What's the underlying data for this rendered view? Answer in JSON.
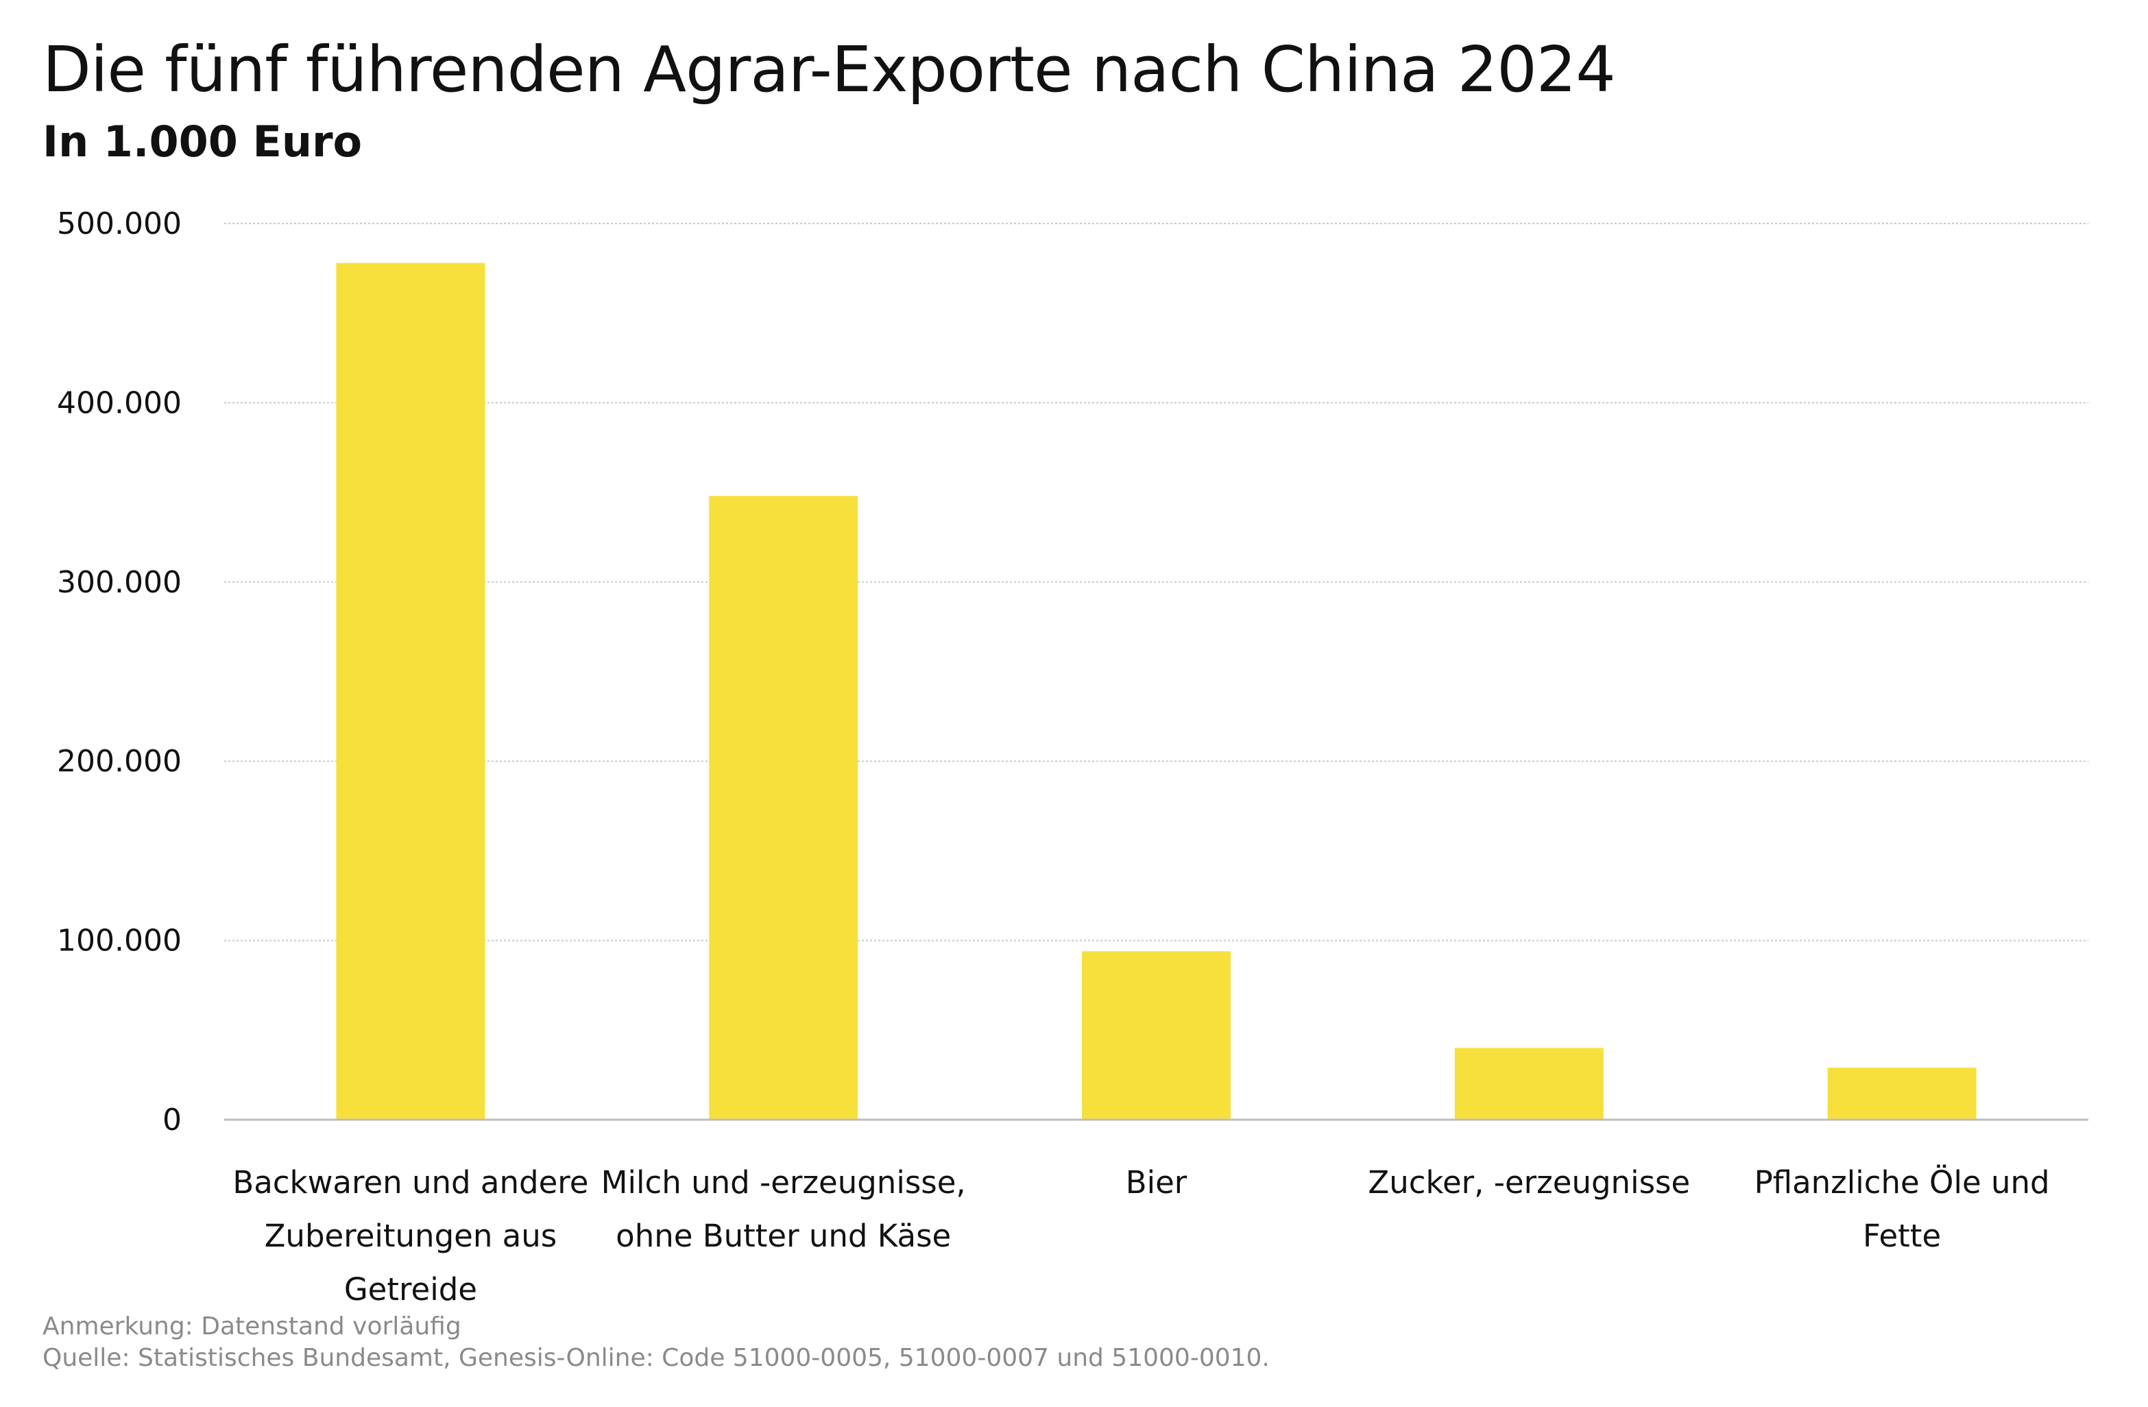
{
  "title": "Die fünf führenden Agrar-Exporte nach China 2024",
  "subtitle": "In 1.000 Euro",
  "footer": {
    "note": "Anmerkung: Datenstand vorläufig",
    "source": "Quelle: Statistisches Bundesamt, Genesis-Online: Code 51000-0005, 51000-0007 und 51000-0010."
  },
  "chart_data": {
    "type": "bar",
    "title": "Die fünf führenden Agrar-Exporte nach China 2024",
    "subtitle": "In 1.000 Euro",
    "categories": [
      [
        "Backwaren und andere",
        "Zubereitungen aus",
        "Getreide"
      ],
      [
        "Milch und -erzeugnisse,",
        "ohne Butter und Käse"
      ],
      [
        "Bier"
      ],
      [
        "Zucker, -erzeugnisse"
      ],
      [
        "Pflanzliche Öle und",
        "Fette"
      ]
    ],
    "values": [
      478000,
      348000,
      94000,
      40000,
      29000
    ],
    "ylim": [
      0,
      500000
    ],
    "yticks": [
      0,
      100000,
      200000,
      300000,
      400000,
      500000
    ],
    "ytick_labels": [
      "0",
      "100.000",
      "200.000",
      "300.000",
      "400.000",
      "500.000"
    ],
    "grid": "horizontal dotted",
    "legend": "none",
    "bar_color": "#f8e03c"
  }
}
